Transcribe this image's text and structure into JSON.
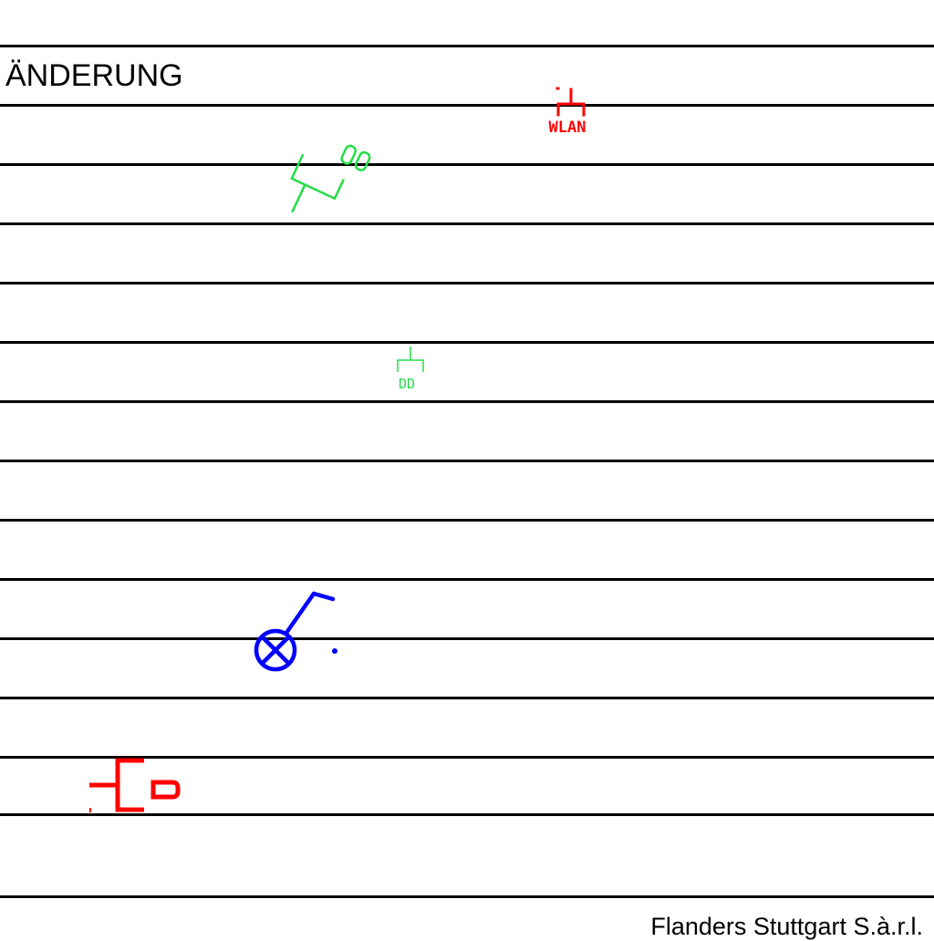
{
  "sheet": {
    "title": "ÄNDERUNG",
    "footer": "Flanders Stuttgart S.à.r.l."
  },
  "symbols": {
    "wlan": {
      "label": "WLAN",
      "color": "#ff0000",
      "icon": "network-outlet-icon"
    },
    "dd": {
      "label": "DD",
      "color": "#22dd44",
      "icon": "network-outlet-icon"
    },
    "green_device": {
      "label": "88",
      "color": "#22dd44",
      "icon": "rotated-outlet-icon"
    },
    "blue_device": {
      "color": "#0000ff",
      "icon": "lamp-crossed-circle-icon"
    },
    "red_device": {
      "color": "#ff0000",
      "icon": "junction-box-icon"
    }
  }
}
